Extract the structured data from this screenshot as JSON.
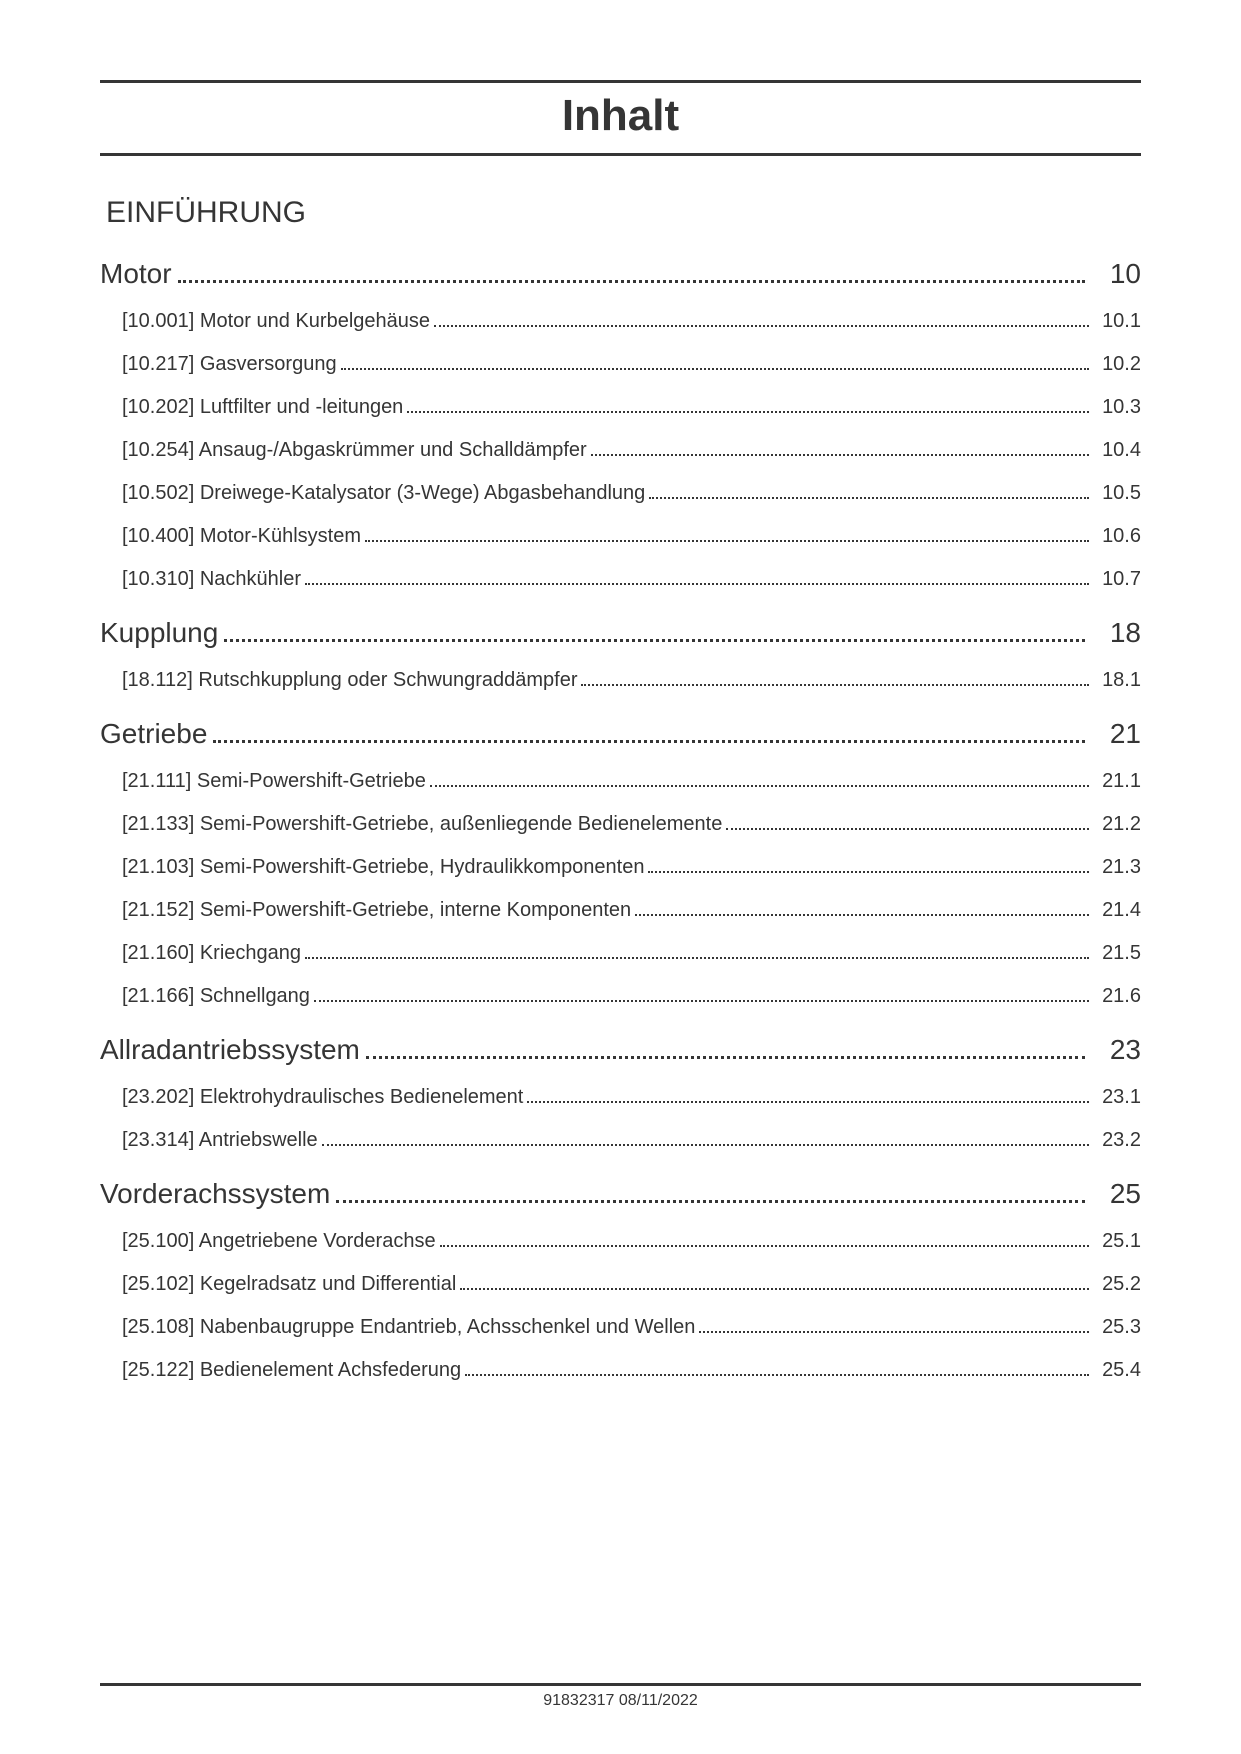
{
  "title": "Inhalt",
  "intro_heading": "EINFÜHRUNG",
  "footer": "91832317 08/11/2022",
  "colors": {
    "text": "#353535",
    "background": "#ffffff"
  },
  "typography": {
    "title_fontsize": 44,
    "section_fontsize": 28,
    "sub_fontsize": 20,
    "footer_fontsize": 16
  },
  "sections": [
    {
      "label": "Motor",
      "page": "10",
      "items": [
        {
          "label": "[10.001] Motor und Kurbelgehäuse",
          "page": "10.1"
        },
        {
          "label": "[10.217] Gasversorgung",
          "page": "10.2"
        },
        {
          "label": "[10.202] Luftfilter und -leitungen",
          "page": "10.3"
        },
        {
          "label": "[10.254] Ansaug-/Abgaskrümmer und Schalldämpfer",
          "page": "10.4"
        },
        {
          "label": "[10.502] Dreiwege-Katalysator (3-Wege) Abgasbehandlung",
          "page": "10.5"
        },
        {
          "label": "[10.400] Motor-Kühlsystem",
          "page": "10.6"
        },
        {
          "label": "[10.310] Nachkühler",
          "page": "10.7"
        }
      ]
    },
    {
      "label": "Kupplung",
      "page": "18",
      "items": [
        {
          "label": "[18.112] Rutschkupplung oder Schwungraddämpfer",
          "page": "18.1"
        }
      ]
    },
    {
      "label": "Getriebe",
      "page": "21",
      "items": [
        {
          "label": "[21.111] Semi-Powershift-Getriebe",
          "page": "21.1"
        },
        {
          "label": "[21.133] Semi-Powershift-Getriebe, außenliegende Bedienelemente",
          "page": "21.2"
        },
        {
          "label": "[21.103] Semi-Powershift-Getriebe, Hydraulikkomponenten",
          "page": "21.3"
        },
        {
          "label": "[21.152] Semi-Powershift-Getriebe, interne Komponenten",
          "page": "21.4"
        },
        {
          "label": "[21.160] Kriechgang",
          "page": "21.5"
        },
        {
          "label": "[21.166] Schnellgang",
          "page": "21.6"
        }
      ]
    },
    {
      "label": "Allradantriebssystem",
      "page": "23",
      "items": [
        {
          "label": "[23.202] Elektrohydraulisches Bedienelement",
          "page": "23.1"
        },
        {
          "label": "[23.314] Antriebswelle",
          "page": "23.2"
        }
      ]
    },
    {
      "label": "Vorderachssystem",
      "page": "25",
      "items": [
        {
          "label": "[25.100] Angetriebene Vorderachse",
          "page": "25.1"
        },
        {
          "label": "[25.102] Kegelradsatz und Differential",
          "page": "25.2"
        },
        {
          "label": "[25.108] Nabenbaugruppe Endantrieb, Achsschenkel und Wellen",
          "page": "25.3"
        },
        {
          "label": "[25.122] Bedienelement Achsfederung",
          "page": "25.4"
        }
      ]
    }
  ]
}
